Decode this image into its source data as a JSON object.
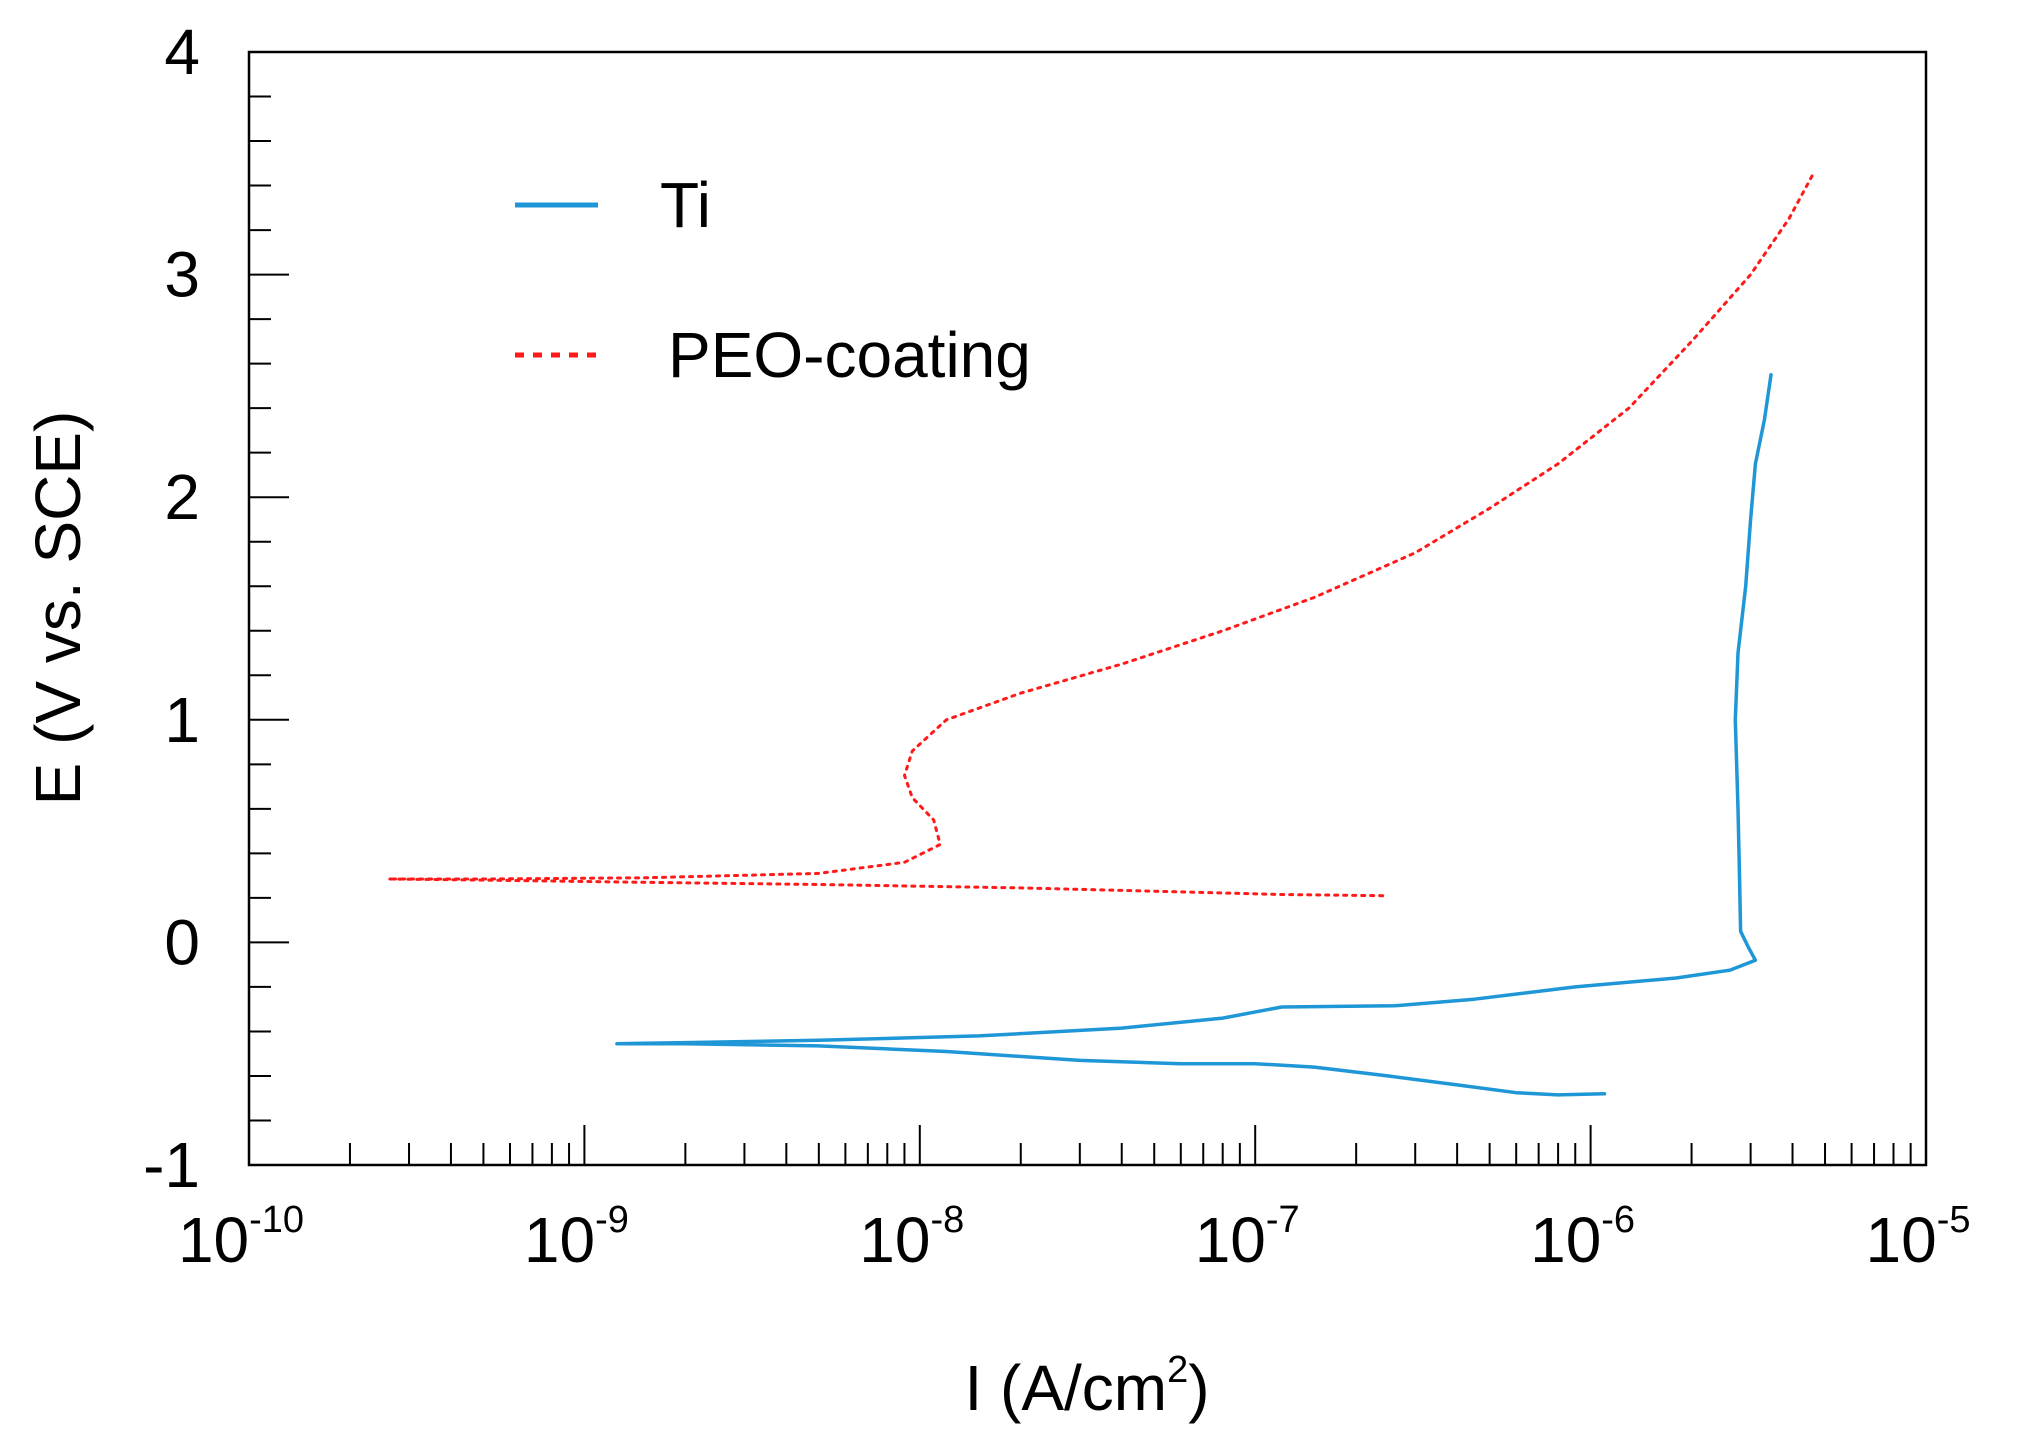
{
  "chart_data": {
    "type": "line",
    "xlabel": "I (A/cm²)",
    "xlabel_base": "I (A/cm",
    "xlabel_sup": "2",
    "xlabel_tail": ")",
    "ylabel": "E (V vs. SCE)",
    "xscale": "log",
    "xlim": [
      1e-10,
      1e-05
    ],
    "ylim": [
      -1,
      4
    ],
    "x_ticks": [
      {
        "base": "10",
        "exp": "-10",
        "value": 1e-10
      },
      {
        "base": "10",
        "exp": "-9",
        "value": 1e-09
      },
      {
        "base": "10",
        "exp": "-8",
        "value": 1e-08
      },
      {
        "base": "10",
        "exp": "-7",
        "value": 1e-07
      },
      {
        "base": "10",
        "exp": "-6",
        "value": 1e-06
      },
      {
        "base": "10",
        "exp": "-5",
        "value": 1e-05
      }
    ],
    "y_ticks": [
      {
        "label": "-1",
        "value": -1
      },
      {
        "label": "0",
        "value": 0
      },
      {
        "label": "1",
        "value": 1
      },
      {
        "label": "2",
        "value": 2
      },
      {
        "label": "3",
        "value": 3
      },
      {
        "label": "4",
        "value": 4
      }
    ],
    "grid": false,
    "legend_position": "top-left",
    "series": [
      {
        "name": "Ti",
        "color": "#1f97d6",
        "style": "solid",
        "points": [
          [
            1.1e-06,
            -0.68
          ],
          [
            8e-07,
            -0.685
          ],
          [
            6e-07,
            -0.675
          ],
          [
            4e-07,
            -0.64
          ],
          [
            2.5e-07,
            -0.6
          ],
          [
            1.5e-07,
            -0.56
          ],
          [
            1e-07,
            -0.545
          ],
          [
            6e-08,
            -0.545
          ],
          [
            3e-08,
            -0.53
          ],
          [
            1.2e-08,
            -0.49
          ],
          [
            5e-09,
            -0.465
          ],
          [
            2e-09,
            -0.455
          ],
          [
            1.25e-09,
            -0.455
          ],
          [
            2e-09,
            -0.45
          ],
          [
            5e-09,
            -0.44
          ],
          [
            1.5e-08,
            -0.42
          ],
          [
            4e-08,
            -0.385
          ],
          [
            8e-08,
            -0.34
          ],
          [
            1.2e-07,
            -0.29
          ],
          [
            2.6e-07,
            -0.285
          ],
          [
            4.5e-07,
            -0.255
          ],
          [
            9e-07,
            -0.2
          ],
          [
            1.8e-06,
            -0.16
          ],
          [
            2.6e-06,
            -0.125
          ],
          [
            3.1e-06,
            -0.08
          ],
          [
            2.95e-06,
            -0.02
          ],
          [
            2.8e-06,
            0.05
          ],
          [
            2.78e-06,
            0.3
          ],
          [
            2.75e-06,
            0.6
          ],
          [
            2.7e-06,
            1.0
          ],
          [
            2.75e-06,
            1.3
          ],
          [
            2.9e-06,
            1.6
          ],
          [
            3e-06,
            1.9
          ],
          [
            3.1e-06,
            2.15
          ],
          [
            3.3e-06,
            2.35
          ],
          [
            3.45e-06,
            2.55
          ]
        ]
      },
      {
        "name": "PEO-coating",
        "color": "#ff1a1a",
        "style": "dotted",
        "points": [
          [
            2.4e-07,
            0.21
          ],
          [
            1.2e-07,
            0.215
          ],
          [
            5e-08,
            0.23
          ],
          [
            2e-08,
            0.245
          ],
          [
            5e-09,
            0.26
          ],
          [
            1.5e-09,
            0.27
          ],
          [
            5e-10,
            0.28
          ],
          [
            2.6e-10,
            0.285
          ],
          [
            5e-10,
            0.285
          ],
          [
            1.5e-09,
            0.29
          ],
          [
            5e-09,
            0.31
          ],
          [
            9e-09,
            0.36
          ],
          [
            1.15e-08,
            0.44
          ],
          [
            1.1e-08,
            0.55
          ],
          [
            9.5e-09,
            0.65
          ],
          [
            9e-09,
            0.75
          ],
          [
            9.5e-09,
            0.86
          ],
          [
            1.2e-08,
            1.0
          ],
          [
            2e-08,
            1.12
          ],
          [
            4e-08,
            1.25
          ],
          [
            8e-08,
            1.4
          ],
          [
            1.5e-07,
            1.55
          ],
          [
            3e-07,
            1.75
          ],
          [
            5e-07,
            1.95
          ],
          [
            8e-07,
            2.15
          ],
          [
            1.3e-06,
            2.4
          ],
          [
            2e-06,
            2.7
          ],
          [
            3e-06,
            3.0
          ],
          [
            3.9e-06,
            3.25
          ],
          [
            4.6e-06,
            3.45
          ]
        ]
      }
    ]
  }
}
